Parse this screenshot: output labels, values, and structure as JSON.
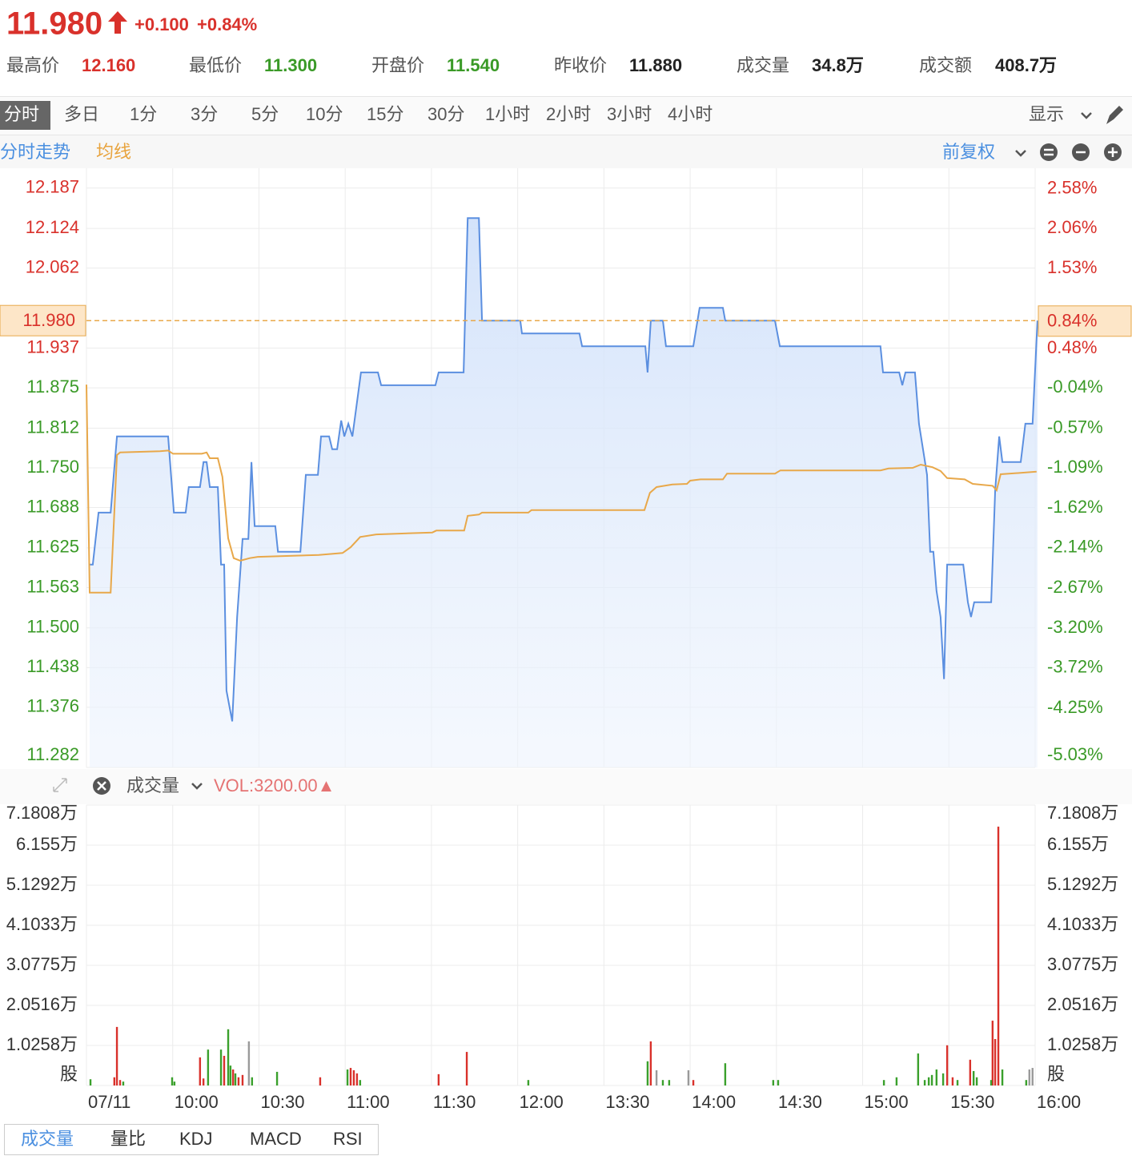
{
  "header": {
    "price": "11.980",
    "change": "+0.100",
    "change_pct": "+0.84%",
    "stats": [
      {
        "label": "最高价",
        "value": "12.160"
      },
      {
        "label": "最低价",
        "value": "11.300"
      },
      {
        "label": "开盘价",
        "value": "11.540"
      },
      {
        "label": "昨收价",
        "value": "11.880"
      },
      {
        "label": "成交量",
        "value": "34.8万"
      },
      {
        "label": "成交额",
        "value": "408.7万"
      }
    ]
  },
  "tabs": [
    "分时",
    "多日",
    "1分",
    "3分",
    "5分",
    "10分",
    "15分",
    "30分",
    "1小时",
    "2小时",
    "3小时",
    "4小时"
  ],
  "display_menu": "显示",
  "chart_tabs": {
    "intraday": "分时走势",
    "average": "均线",
    "adjust": "前复权"
  },
  "volume_header": {
    "indicator": "成交量",
    "vol_label": "VOL:3200.00▲"
  },
  "bottom_tabs": [
    "成交量",
    "量比",
    "KDJ",
    "MACD",
    "RSI"
  ],
  "chart_data": [
    {
      "type": "line",
      "prev_close": 11.88,
      "xlim": [
        0,
        330
      ],
      "ylim": [
        11.282,
        12.218
      ],
      "y2lim": [
        -5.03,
        2.85
      ],
      "yticks": [
        12.187,
        12.124,
        12.062,
        11.937,
        11.875,
        11.812,
        {
          "value": 11.75,
          "label": "11.750"
        },
        11.688,
        11.625,
        11.563,
        {
          "value": 11.5,
          "label": "11.500"
        },
        11.438,
        11.376,
        11.282
      ],
      "y2ticks": [
        {
          "value": 2.58,
          "label": "2.58%"
        },
        {
          "value": 2.06,
          "label": "2.06%"
        },
        {
          "value": 1.53,
          "label": "1.53%"
        },
        {
          "value": 0.48,
          "label": "0.48%"
        },
        {
          "value": -0.04,
          "label": "-0.04%"
        },
        {
          "value": -0.57,
          "label": "-0.57%"
        },
        {
          "value": -1.09,
          "label": "-1.09%"
        },
        {
          "value": -1.62,
          "label": "-1.62%"
        },
        {
          "value": -2.14,
          "label": "-2.14%"
        },
        {
          "value": -2.67,
          "label": "-2.67%"
        },
        {
          "value": -3.2,
          "label": "-3.20%"
        },
        {
          "value": -3.72,
          "label": "-3.72%"
        },
        {
          "value": -4.25,
          "label": "-4.25%"
        },
        {
          "value": -5.03,
          "label": "-5.03%"
        }
      ],
      "price_line": {
        "value": 11.98,
        "label": "11.980",
        "pct": 0.84,
        "pct_label": "0.84%"
      },
      "grid": true,
      "series": [
        {
          "color": "#5b8fe0",
          "area": true,
          "x": [
            1.1,
            2.2,
            4.2,
            8.4,
            10.6,
            28.4,
            30.4,
            34.5,
            35.6,
            39.5,
            40.7,
            41.8,
            42.9,
            45.7,
            46.8,
            47.9,
            48.7,
            50.7,
            52.4,
            54.3,
            56.3,
            57.4,
            58.5,
            65.7,
            66.6,
            74.4,
            76.3,
            80.5,
            81.6,
            84.4,
            85.5,
            87.2,
            88.6,
            89.7,
            91.1,
            92.5,
            95.5,
            101.4,
            102.5,
            121.4,
            122.5,
            131.2,
            132.6,
            136.5,
            137.6,
            150.9,
            151.5,
            171.5,
            172.4,
            194.4,
            195.2,
            196.3,
            200.5,
            201.6,
            211.1,
            213.3,
            221.4,
            222.2,
            239.5,
            241.2,
            276.2,
            277.1,
            282.7,
            283.8,
            284.9,
            288.2,
            289.6,
            292.4,
            293.5,
            294.6,
            295.7,
            297.1,
            298.3,
            299.4,
            305.0,
            306.6,
            307.7,
            308.8,
            314.7,
            316.1,
            317.5,
            318.6,
            325.0,
            326.6,
            329.1,
            330.8
          ],
          "values": [
            11.599,
            11.599,
            11.68,
            11.68,
            11.799,
            11.799,
            11.68,
            11.68,
            11.72,
            11.72,
            11.759,
            11.759,
            11.72,
            11.72,
            11.599,
            11.599,
            11.402,
            11.354,
            11.517,
            11.639,
            11.639,
            11.759,
            11.659,
            11.659,
            11.619,
            11.619,
            11.739,
            11.739,
            11.799,
            11.799,
            11.779,
            11.779,
            11.824,
            11.799,
            11.819,
            11.799,
            11.899,
            11.899,
            11.879,
            11.879,
            11.899,
            11.899,
            12.14,
            12.14,
            11.98,
            11.98,
            11.96,
            11.96,
            11.94,
            11.94,
            11.899,
            11.98,
            11.98,
            11.94,
            11.94,
            12.0,
            12.0,
            11.98,
            11.98,
            11.94,
            11.94,
            11.899,
            11.899,
            11.879,
            11.899,
            11.899,
            11.819,
            11.739,
            11.619,
            11.619,
            11.558,
            11.517,
            11.42,
            11.599,
            11.599,
            11.54,
            11.517,
            11.54,
            11.54,
            11.715,
            11.799,
            11.759,
            11.759,
            11.819,
            11.819,
            11.98
          ]
        },
        {
          "color": "#e8a84a",
          "area": false,
          "x": [
            0,
            1.1,
            8.4,
            10.6,
            11.7,
            25.6,
            28.4,
            30.1,
            40.1,
            41.8,
            42.9,
            45.7,
            47.3,
            49.3,
            51.2,
            53.5,
            56.8,
            59.6,
            80.8,
            89.1,
            91.9,
            95.2,
            100.8,
            120.3,
            121.7,
            131.4,
            132.6,
            136.5,
            137.6,
            153.7,
            154.8,
            194.1,
            196.0,
            198.3,
            203.8,
            208.9,
            210.0,
            213.6,
            221.4,
            222.8,
            239.5,
            241.4,
            276.2,
            279.0,
            287.4,
            290.2,
            294.3,
            297.1,
            299.4,
            305.5,
            308.3,
            315.2,
            316.6,
            318.0,
            330.5
          ],
          "values": [
            11.88,
            11.555,
            11.555,
            11.77,
            11.774,
            11.776,
            11.777,
            11.772,
            11.772,
            11.774,
            11.765,
            11.765,
            11.736,
            11.64,
            11.609,
            11.605,
            11.609,
            11.611,
            11.614,
            11.617,
            11.626,
            11.642,
            11.646,
            11.649,
            11.652,
            11.652,
            11.675,
            11.677,
            11.68,
            11.68,
            11.684,
            11.684,
            11.711,
            11.72,
            11.724,
            11.725,
            11.73,
            11.732,
            11.732,
            11.741,
            11.741,
            11.746,
            11.746,
            11.749,
            11.75,
            11.755,
            11.751,
            11.745,
            11.734,
            11.732,
            11.725,
            11.722,
            11.715,
            11.74,
            11.744
          ]
        }
      ]
    },
    {
      "type": "bar",
      "xlim": [
        0,
        330
      ],
      "ylim": [
        0,
        7.1808
      ],
      "yticks": [
        {
          "value": 7.1808,
          "label": "7.1808万"
        },
        {
          "value": 6.155,
          "label": "6.155万"
        },
        {
          "value": 5.1292,
          "label": "5.1292万"
        },
        {
          "value": 4.1033,
          "label": "4.1033万"
        },
        {
          "value": 3.0775,
          "label": "3.0775万"
        },
        {
          "value": 2.0516,
          "label": "2.0516万"
        },
        {
          "value": 1.0258,
          "label": "1.0258万"
        },
        {
          "value": 0,
          "label": "股"
        }
      ],
      "xticks": [
        {
          "value": 0,
          "label": "07/11"
        },
        {
          "value": 30,
          "label": "10:00"
        },
        {
          "value": 60,
          "label": "10:30"
        },
        {
          "value": 90,
          "label": "11:00"
        },
        {
          "value": 120,
          "label": "11:30"
        },
        {
          "value": 150,
          "label": "12:00"
        },
        {
          "value": 180,
          "label": "13:30"
        },
        {
          "value": 210,
          "label": "14:00"
        },
        {
          "value": 240,
          "label": "14:30"
        },
        {
          "value": 270,
          "label": "15:00"
        },
        {
          "value": 300,
          "label": "15:30"
        },
        {
          "value": 330,
          "label": "16:00"
        }
      ],
      "grid": true,
      "series": [
        {
          "color": "#d9312b",
          "x": [
            9.7,
            10.6,
            11.7,
            39.5,
            40.7,
            47.9,
            51.0,
            52.9,
            54.3,
            81.3,
            91.9,
            93.0,
            94.1,
            122.5,
            132.3,
            196.3,
            211.1,
            299.4,
            301.3,
            307.4,
            315.2,
            316.1,
            317.2
          ],
          "values": [
            0.21,
            1.5,
            0.14,
            0.72,
            0.18,
            0.76,
            0.41,
            0.21,
            0.27,
            0.21,
            0.45,
            0.39,
            0.31,
            0.29,
            0.86,
            1.13,
            0.14,
            1.03,
            0.21,
            0.66,
            1.66,
            1.19,
            6.63
          ]
        },
        {
          "color": "#3aa02c",
          "x": [
            1.4,
            12.8,
            29.8,
            30.6,
            42.3,
            46.8,
            49.3,
            50.1,
            51.8,
            57.6,
            66.3,
            90.8,
            95.2,
            153.7,
            195.2,
            200.5,
            202.7,
            222.2,
            238.9,
            240.6,
            277.4,
            281.8,
            289.3,
            291.6,
            293.0,
            294.1,
            295.7,
            298.0,
            303.0,
            308.6,
            309.7,
            314.7,
            318.6,
            326.9
          ],
          "values": [
            0.16,
            0.1,
            0.21,
            0.1,
            0.92,
            0.92,
            1.44,
            0.51,
            0.31,
            0.21,
            0.35,
            0.41,
            0.14,
            0.14,
            0.62,
            0.14,
            0.14,
            0.57,
            0.14,
            0.14,
            0.14,
            0.21,
            0.82,
            0.14,
            0.21,
            0.27,
            0.41,
            0.31,
            0.14,
            0.37,
            0.21,
            0.14,
            0.41,
            0.14
          ]
        },
        {
          "color": "#9a9a9a",
          "x": [
            56.5,
            198.3,
            209.4,
            328.0,
            329.1
          ],
          "values": [
            1.13,
            0.39,
            0.39,
            0.41,
            0.45
          ]
        }
      ]
    }
  ]
}
